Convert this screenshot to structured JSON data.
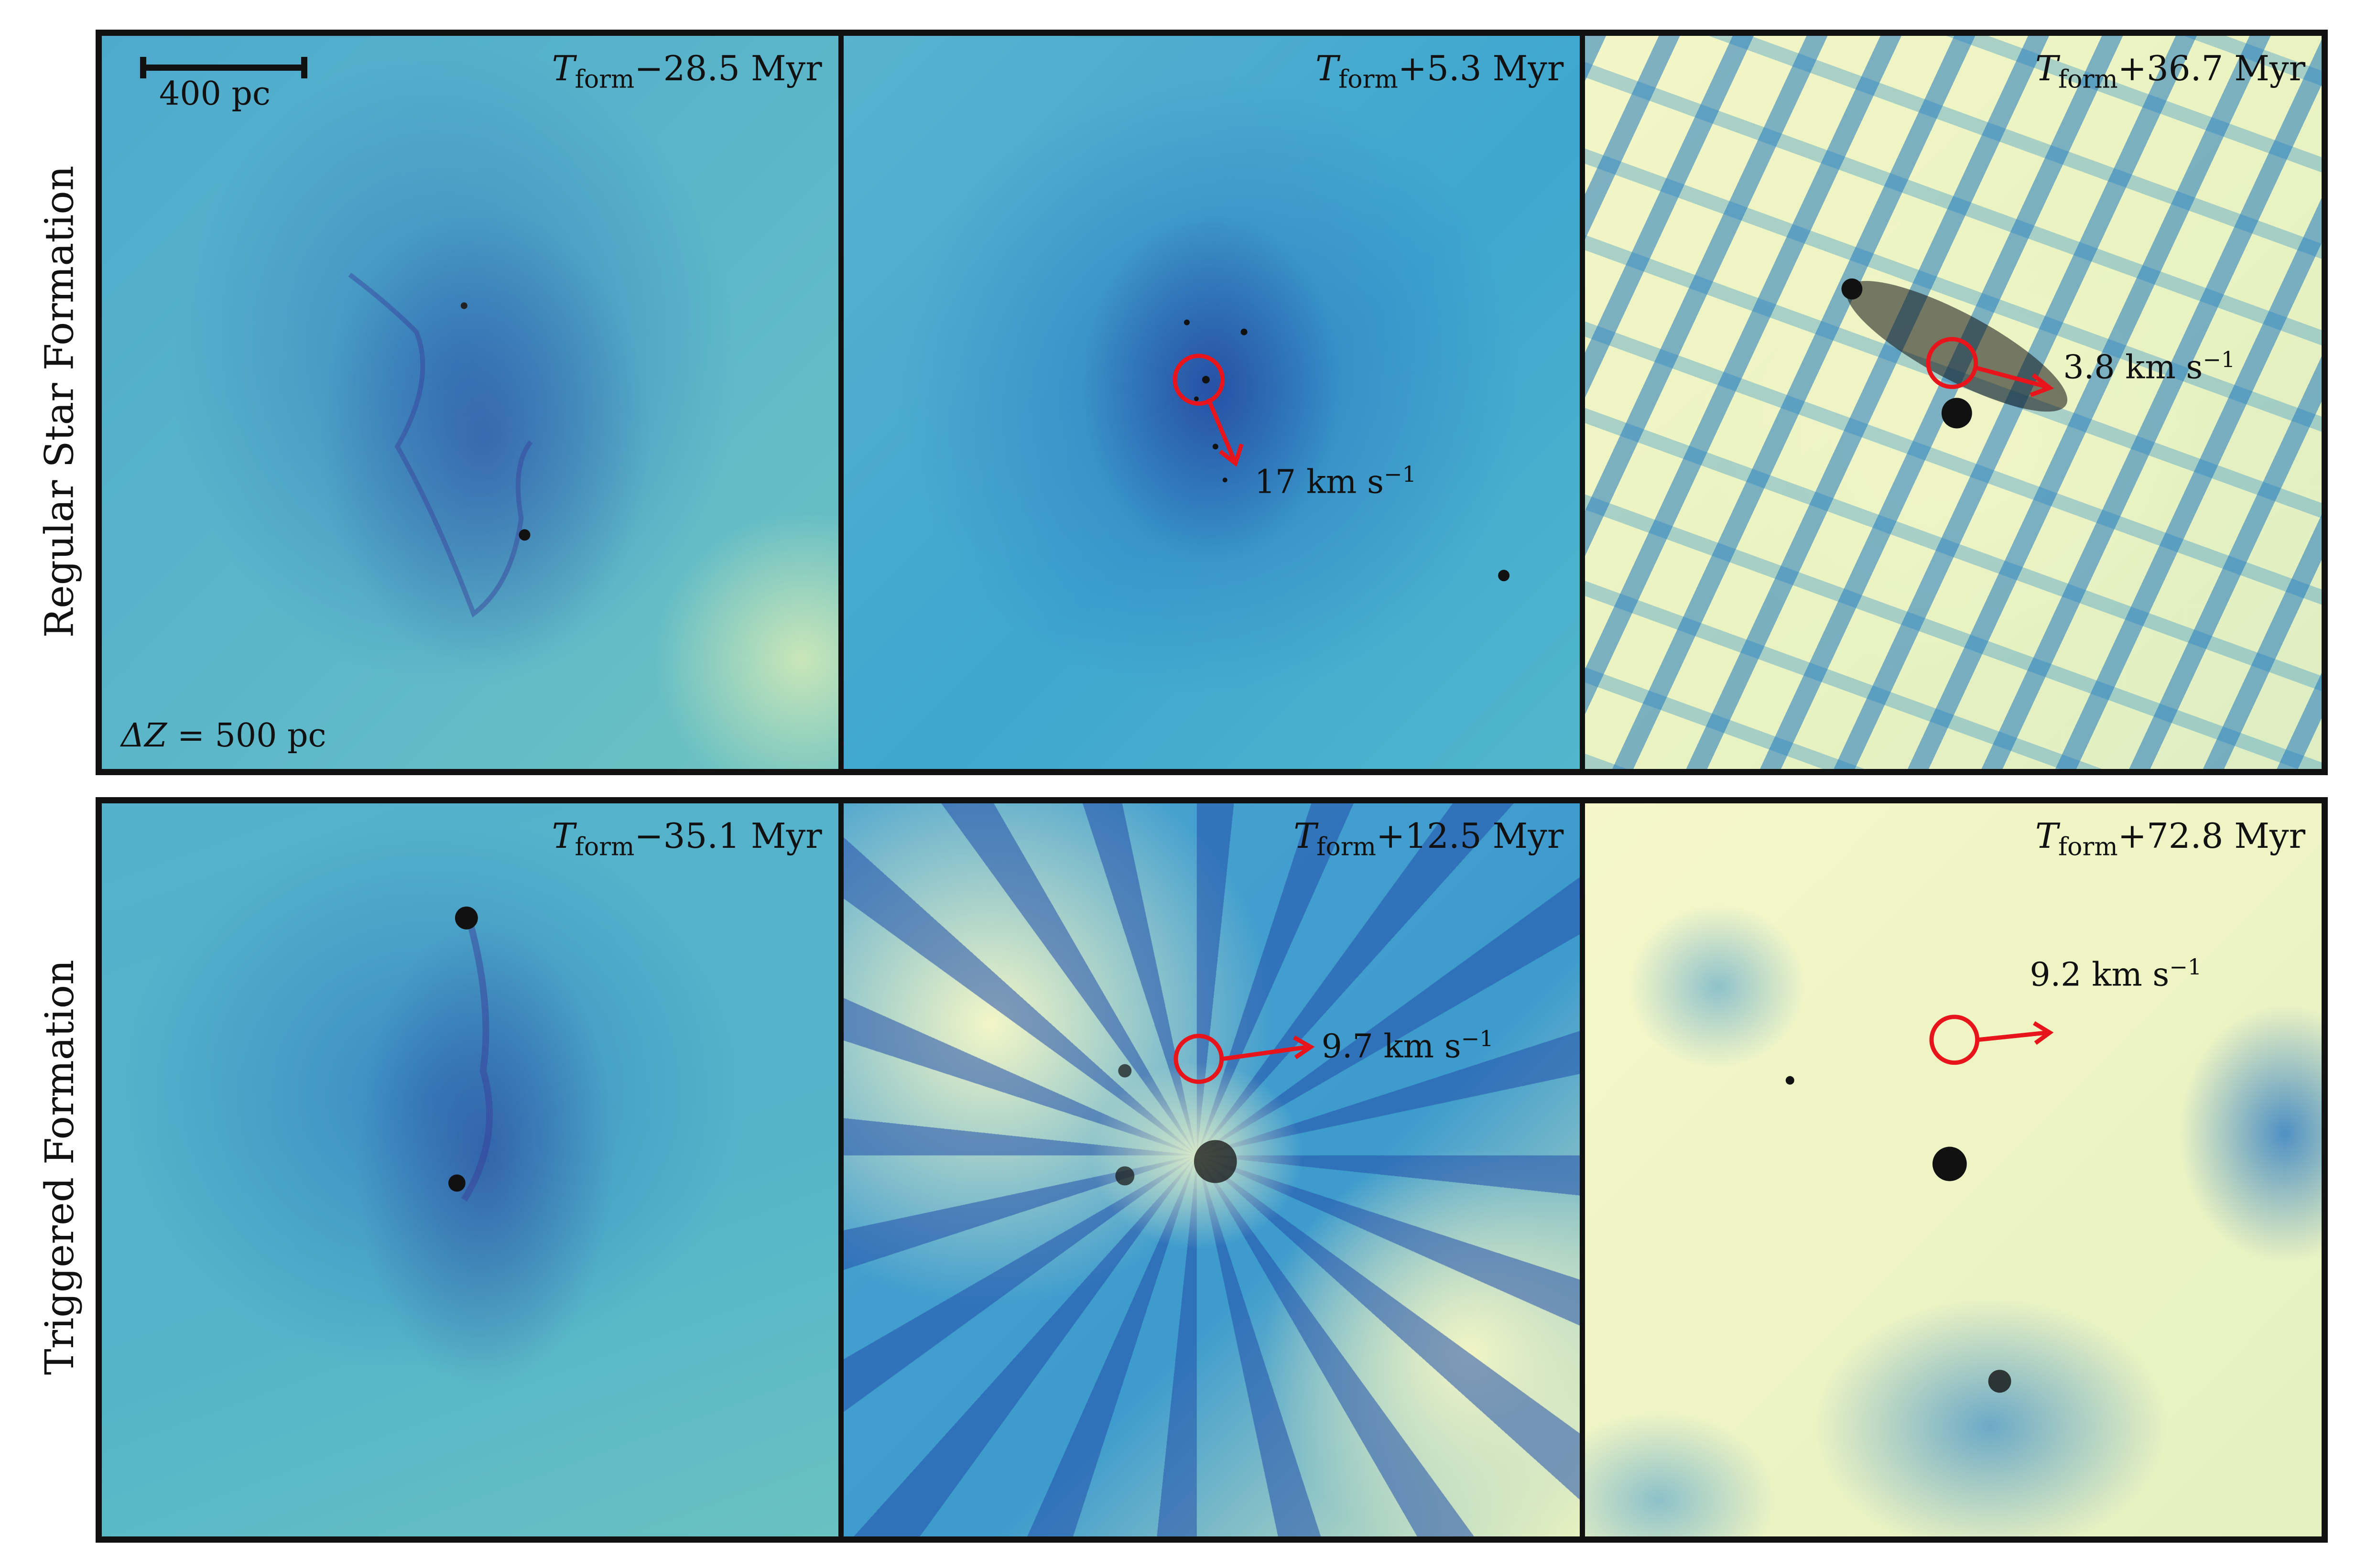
{
  "rows": [
    {
      "label": "Regular Star Formation",
      "panels": [
        {
          "time_sign": "−",
          "time_value": "28.5",
          "time_unit": "Myr",
          "velocity": null
        },
        {
          "time_sign": "+",
          "time_value": "5.3",
          "time_unit": "Myr",
          "velocity": "17"
        },
        {
          "time_sign": "+",
          "time_value": "36.7",
          "time_unit": "Myr",
          "velocity": "3.8"
        }
      ]
    },
    {
      "label": "Triggered Formation",
      "panels": [
        {
          "time_sign": "−",
          "time_value": "35.1",
          "time_unit": "Myr",
          "velocity": null
        },
        {
          "time_sign": "+",
          "time_value": "12.5",
          "time_unit": "Myr",
          "velocity": "9.7"
        },
        {
          "time_sign": "+",
          "time_value": "72.8",
          "time_unit": "Myr",
          "velocity": "9.2"
        }
      ]
    }
  ],
  "time_symbol": "T",
  "time_subscript": "form",
  "velocity_unit": "km s",
  "velocity_unit_exponent": "−1",
  "scale_bar_label": "400 pc",
  "depth_label_symbol": "ΔZ",
  "depth_label_value": " = 500 pc",
  "colors": {
    "marker": "#e8141b",
    "frame": "#111111",
    "light_gas": "#f6f7c8",
    "mid_gas": "#41b6c4",
    "dense_gas": "#253494"
  },
  "colormap": "YlGnBu"
}
